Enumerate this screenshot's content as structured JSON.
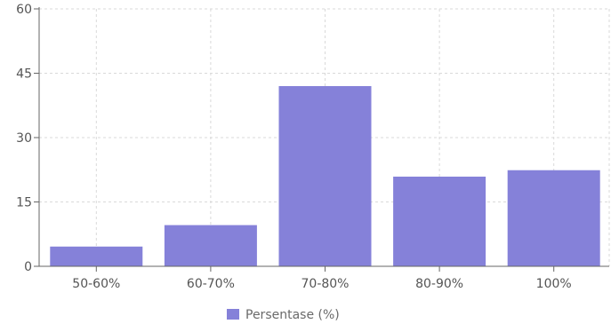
{
  "chart_data": {
    "type": "bar",
    "categories": [
      "50-60%",
      "60-70%",
      "70-80%",
      "80-90%",
      "100%"
    ],
    "series": [
      {
        "name": "Persentase (%)",
        "values": [
          4.6,
          9.6,
          42.0,
          20.9,
          22.4
        ],
        "color": "#8581d9"
      }
    ],
    "ylim": [
      0,
      60
    ],
    "yticks": [
      0,
      15,
      30,
      45,
      60
    ],
    "grid": true,
    "legend_position": "bottom-center",
    "xlabel": "",
    "ylabel": "",
    "title": ""
  }
}
